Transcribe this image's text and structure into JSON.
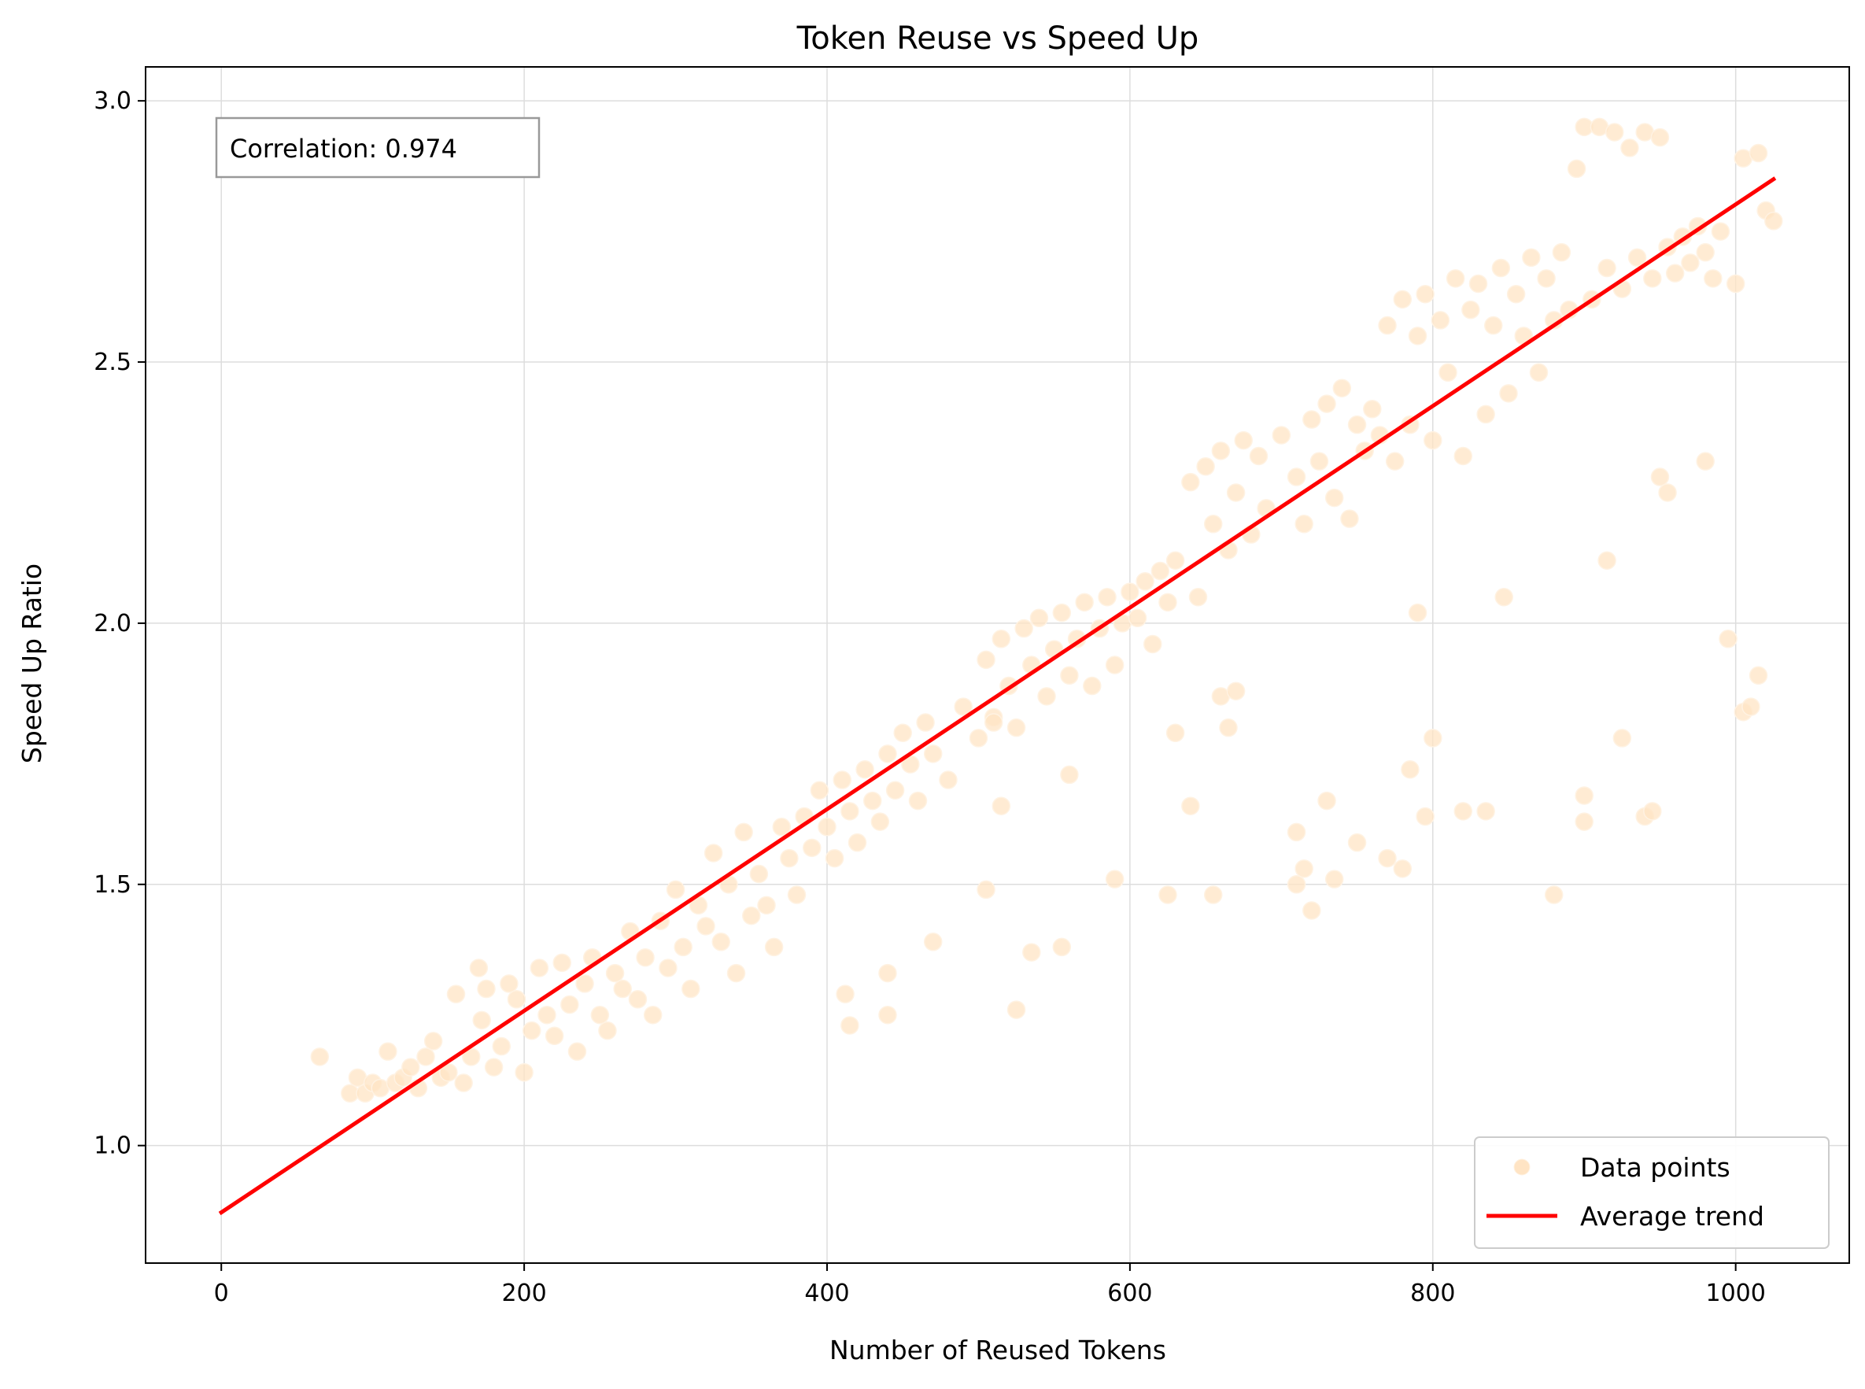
{
  "chart_data": {
    "type": "scatter",
    "title": "Token Reuse vs Speed Up",
    "xlabel": "Number of Reused Tokens",
    "ylabel": "Speed Up Ratio",
    "xlim": [
      -50,
      1075
    ],
    "ylim": [
      0.775,
      3.065
    ],
    "xticks": [
      0,
      200,
      400,
      600,
      800,
      1000
    ],
    "xtick_labels": [
      "0",
      "200",
      "400",
      "600",
      "800",
      "1000"
    ],
    "yticks": [
      1.0,
      1.5,
      2.0,
      2.5,
      3.0
    ],
    "ytick_labels": [
      "1.0",
      "1.5",
      "2.0",
      "2.5",
      "3.0"
    ],
    "grid": true,
    "legend_position": "lower-right",
    "annotation": "Correlation: 0.974",
    "colors": {
      "points": "#FFE4C4",
      "points_edge": "#FFF2E2",
      "trend": "#FF0000"
    },
    "series": [
      {
        "name": "Data points",
        "kind": "scatter",
        "points": [
          [
            65,
            1.17
          ],
          [
            85,
            1.1
          ],
          [
            90,
            1.13
          ],
          [
            95,
            1.1
          ],
          [
            100,
            1.12
          ],
          [
            105,
            1.11
          ],
          [
            110,
            1.18
          ],
          [
            115,
            1.12
          ],
          [
            120,
            1.13
          ],
          [
            125,
            1.15
          ],
          [
            130,
            1.11
          ],
          [
            135,
            1.17
          ],
          [
            140,
            1.2
          ],
          [
            145,
            1.13
          ],
          [
            150,
            1.14
          ],
          [
            155,
            1.29
          ],
          [
            160,
            1.12
          ],
          [
            165,
            1.17
          ],
          [
            170,
            1.34
          ],
          [
            172,
            1.24
          ],
          [
            175,
            1.3
          ],
          [
            180,
            1.15
          ],
          [
            185,
            1.19
          ],
          [
            190,
            1.31
          ],
          [
            195,
            1.28
          ],
          [
            200,
            1.14
          ],
          [
            205,
            1.22
          ],
          [
            210,
            1.34
          ],
          [
            215,
            1.25
          ],
          [
            220,
            1.21
          ],
          [
            225,
            1.35
          ],
          [
            230,
            1.27
          ],
          [
            235,
            1.18
          ],
          [
            240,
            1.31
          ],
          [
            245,
            1.36
          ],
          [
            250,
            1.25
          ],
          [
            255,
            1.22
          ],
          [
            260,
            1.33
          ],
          [
            265,
            1.3
          ],
          [
            270,
            1.41
          ],
          [
            275,
            1.28
          ],
          [
            280,
            1.36
          ],
          [
            285,
            1.25
          ],
          [
            290,
            1.43
          ],
          [
            295,
            1.34
          ],
          [
            300,
            1.49
          ],
          [
            305,
            1.38
          ],
          [
            310,
            1.3
          ],
          [
            315,
            1.46
          ],
          [
            320,
            1.42
          ],
          [
            325,
            1.56
          ],
          [
            330,
            1.39
          ],
          [
            335,
            1.5
          ],
          [
            340,
            1.33
          ],
          [
            345,
            1.6
          ],
          [
            350,
            1.44
          ],
          [
            355,
            1.52
          ],
          [
            360,
            1.46
          ],
          [
            365,
            1.38
          ],
          [
            370,
            1.61
          ],
          [
            375,
            1.55
          ],
          [
            380,
            1.48
          ],
          [
            385,
            1.63
          ],
          [
            390,
            1.57
          ],
          [
            395,
            1.68
          ],
          [
            400,
            1.61
          ],
          [
            405,
            1.55
          ],
          [
            410,
            1.7
          ],
          [
            415,
            1.64
          ],
          [
            420,
            1.58
          ],
          [
            425,
            1.72
          ],
          [
            430,
            1.66
          ],
          [
            435,
            1.62
          ],
          [
            440,
            1.75
          ],
          [
            445,
            1.68
          ],
          [
            450,
            1.79
          ],
          [
            455,
            1.73
          ],
          [
            460,
            1.66
          ],
          [
            465,
            1.81
          ],
          [
            470,
            1.75
          ],
          [
            480,
            1.7
          ],
          [
            490,
            1.84
          ],
          [
            500,
            1.78
          ],
          [
            505,
            1.93
          ],
          [
            510,
            1.82
          ],
          [
            515,
            1.97
          ],
          [
            520,
            1.88
          ],
          [
            525,
            1.8
          ],
          [
            530,
            1.99
          ],
          [
            535,
            1.92
          ],
          [
            540,
            2.01
          ],
          [
            545,
            1.86
          ],
          [
            550,
            1.95
          ],
          [
            555,
            2.02
          ],
          [
            560,
            1.9
          ],
          [
            565,
            1.97
          ],
          [
            570,
            2.04
          ],
          [
            575,
            1.88
          ],
          [
            580,
            1.99
          ],
          [
            585,
            2.05
          ],
          [
            590,
            1.92
          ],
          [
            595,
            2.0
          ],
          [
            600,
            2.06
          ],
          [
            605,
            2.01
          ],
          [
            610,
            2.08
          ],
          [
            615,
            1.96
          ],
          [
            620,
            2.1
          ],
          [
            625,
            2.04
          ],
          [
            630,
            2.12
          ],
          [
            640,
            2.27
          ],
          [
            645,
            2.05
          ],
          [
            650,
            2.3
          ],
          [
            655,
            2.19
          ],
          [
            660,
            2.33
          ],
          [
            665,
            2.14
          ],
          [
            670,
            2.25
          ],
          [
            675,
            2.35
          ],
          [
            680,
            2.17
          ],
          [
            685,
            2.32
          ],
          [
            690,
            2.22
          ],
          [
            700,
            2.36
          ],
          [
            710,
            2.28
          ],
          [
            715,
            2.19
          ],
          [
            720,
            2.39
          ],
          [
            725,
            2.31
          ],
          [
            730,
            2.42
          ],
          [
            735,
            2.24
          ],
          [
            740,
            2.45
          ],
          [
            745,
            2.2
          ],
          [
            750,
            2.38
          ],
          [
            755,
            2.33
          ],
          [
            760,
            2.41
          ],
          [
            765,
            2.36
          ],
          [
            770,
            2.57
          ],
          [
            775,
            2.31
          ],
          [
            780,
            2.62
          ],
          [
            785,
            2.38
          ],
          [
            790,
            2.55
          ],
          [
            795,
            2.63
          ],
          [
            800,
            2.35
          ],
          [
            805,
            2.58
          ],
          [
            810,
            2.48
          ],
          [
            815,
            2.66
          ],
          [
            820,
            2.32
          ],
          [
            825,
            2.6
          ],
          [
            830,
            2.65
          ],
          [
            835,
            2.4
          ],
          [
            840,
            2.57
          ],
          [
            845,
            2.68
          ],
          [
            850,
            2.44
          ],
          [
            855,
            2.63
          ],
          [
            860,
            2.55
          ],
          [
            865,
            2.7
          ],
          [
            870,
            2.48
          ],
          [
            875,
            2.66
          ],
          [
            880,
            2.58
          ],
          [
            885,
            2.71
          ],
          [
            890,
            2.6
          ],
          [
            895,
            2.87
          ],
          [
            900,
            2.95
          ],
          [
            905,
            2.62
          ],
          [
            910,
            2.95
          ],
          [
            915,
            2.68
          ],
          [
            920,
            2.94
          ],
          [
            925,
            2.64
          ],
          [
            930,
            2.91
          ],
          [
            935,
            2.7
          ],
          [
            940,
            2.94
          ],
          [
            945,
            2.66
          ],
          [
            950,
            2.93
          ],
          [
            955,
            2.72
          ],
          [
            960,
            2.67
          ],
          [
            965,
            2.74
          ],
          [
            970,
            2.69
          ],
          [
            975,
            2.76
          ],
          [
            980,
            2.71
          ],
          [
            985,
            2.66
          ],
          [
            990,
            2.75
          ],
          [
            1000,
            2.65
          ],
          [
            1005,
            2.89
          ],
          [
            1015,
            2.9
          ],
          [
            1020,
            2.79
          ],
          [
            1025,
            2.77
          ],
          [
            412,
            1.29
          ],
          [
            415,
            1.23
          ],
          [
            440,
            1.33
          ],
          [
            440,
            1.25
          ],
          [
            470,
            1.39
          ],
          [
            505,
            1.49
          ],
          [
            510,
            1.81
          ],
          [
            515,
            1.65
          ],
          [
            535,
            1.37
          ],
          [
            525,
            1.26
          ],
          [
            555,
            1.38
          ],
          [
            560,
            1.71
          ],
          [
            590,
            1.51
          ],
          [
            625,
            1.48
          ],
          [
            630,
            1.79
          ],
          [
            640,
            1.65
          ],
          [
            655,
            1.48
          ],
          [
            660,
            1.86
          ],
          [
            665,
            1.8
          ],
          [
            670,
            1.87
          ],
          [
            710,
            1.6
          ],
          [
            710,
            1.5
          ],
          [
            715,
            1.53
          ],
          [
            720,
            1.45
          ],
          [
            730,
            1.66
          ],
          [
            735,
            1.51
          ],
          [
            750,
            1.58
          ],
          [
            770,
            1.55
          ],
          [
            780,
            1.53
          ],
          [
            785,
            1.72
          ],
          [
            790,
            2.02
          ],
          [
            795,
            1.63
          ],
          [
            800,
            1.78
          ],
          [
            820,
            1.64
          ],
          [
            835,
            1.64
          ],
          [
            880,
            1.48
          ],
          [
            900,
            1.67
          ],
          [
            900,
            1.62
          ],
          [
            915,
            2.12
          ],
          [
            925,
            1.78
          ],
          [
            940,
            1.63
          ],
          [
            945,
            1.64
          ],
          [
            950,
            2.28
          ],
          [
            955,
            2.25
          ],
          [
            980,
            2.31
          ],
          [
            995,
            1.97
          ],
          [
            1005,
            1.83
          ],
          [
            1010,
            1.84
          ],
          [
            1015,
            1.9
          ],
          [
            847,
            2.05
          ]
        ]
      },
      {
        "name": "Average trend",
        "kind": "line",
        "points": [
          [
            0,
            0.872
          ],
          [
            1025,
            2.85
          ]
        ]
      }
    ]
  }
}
